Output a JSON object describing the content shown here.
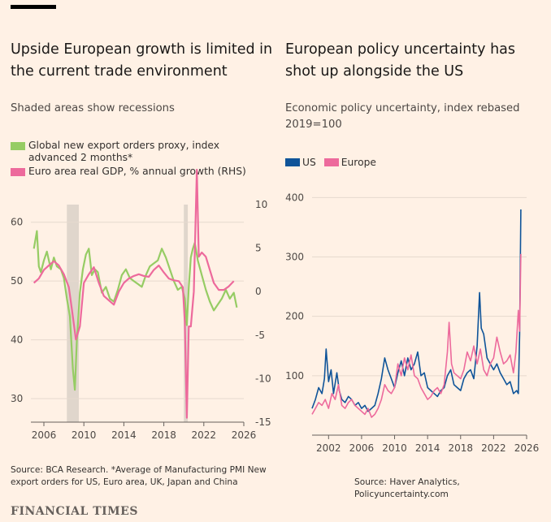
{
  "brand": "FINANCIAL TIMES",
  "left": {
    "title_line1": "Upside European growth is limited in",
    "title_line2": "the current trade environment",
    "subtitle": "Shaded areas show recessions",
    "legend_1": "Global new export orders proxy, index advanced 2 months*",
    "legend_2": "Euro area real GDP, % annual growth (RHS)",
    "source_line1": "Source: BCA Research. *Average of Manufacturing PMI New",
    "source_line2": "export orders for US, Euro area, UK, Japan and China",
    "colors": {
      "pmi": "#96cc64",
      "gdp": "#ed6a9c",
      "recession": "#e0d6cc"
    }
  },
  "right": {
    "title_line1": "European policy uncertainty has",
    "title_line2": "shot up alongside the US",
    "subtitle_line1": "Economic policy uncertainty, index rebased",
    "subtitle_line2": "2019=100",
    "legend_us": "US",
    "legend_europe": "Europe",
    "source": "Source: Haver Analytics, Policyuncertainty.com",
    "colors": {
      "us": "#0f5499",
      "europe": "#ed6a9c"
    }
  },
  "chart_data": [
    {
      "type": "line",
      "title": "Upside European growth is limited in the current trade environment",
      "subtitle": "Shaded areas show recessions",
      "xlim": [
        2004.7,
        2026
      ],
      "x_ticks": [
        "2006",
        "2010",
        "2014",
        "2018",
        "2022",
        "2026"
      ],
      "y_left": {
        "ticks": [
          "30",
          "40",
          "50",
          "60"
        ],
        "range": [
          26,
          63
        ]
      },
      "y_right": {
        "ticks": [
          "-15",
          "-10",
          "-5",
          "0",
          "5",
          "10"
        ],
        "range": [
          -15,
          10
        ]
      },
      "recessions": [
        [
          2008.3,
          2009.5
        ],
        [
          2020.0,
          2020.4
        ]
      ],
      "series": [
        {
          "name": "Global new export orders proxy, index advanced 2 months*",
          "axis": "left",
          "x": [
            2005.0,
            2005.3,
            2005.5,
            2005.7,
            2006.0,
            2006.3,
            2006.7,
            2007.0,
            2007.3,
            2007.7,
            2008.0,
            2008.3,
            2008.6,
            2008.9,
            2009.1,
            2009.3,
            2009.6,
            2009.9,
            2010.2,
            2010.5,
            2010.8,
            2011.1,
            2011.4,
            2011.8,
            2012.2,
            2012.6,
            2013.0,
            2013.4,
            2013.8,
            2014.2,
            2014.6,
            2015.0,
            2015.4,
            2015.8,
            2016.2,
            2016.6,
            2017.0,
            2017.4,
            2017.8,
            2018.2,
            2018.6,
            2019.0,
            2019.4,
            2019.8,
            2020.1,
            2020.3,
            2020.5,
            2020.7,
            2020.9,
            2021.1,
            2021.4,
            2021.8,
            2022.2,
            2022.6,
            2023.0,
            2023.4,
            2023.8,
            2024.2,
            2024.6,
            2025.0,
            2025.3
          ],
          "values": [
            55.5,
            58.5,
            52.5,
            51.5,
            53.5,
            55.0,
            52.0,
            54.0,
            52.5,
            52.0,
            50.5,
            47.0,
            44.0,
            35.0,
            31.5,
            40.0,
            48.0,
            52.0,
            54.5,
            55.5,
            51.0,
            52.0,
            51.5,
            48.0,
            49.0,
            47.0,
            46.5,
            48.5,
            51.0,
            52.0,
            50.5,
            50.0,
            49.5,
            49.0,
            51.0,
            52.5,
            53.0,
            53.5,
            55.5,
            54.0,
            52.0,
            50.0,
            48.5,
            49.0,
            47.0,
            42.5,
            49.0,
            54.0,
            55.5,
            56.5,
            53.5,
            51.0,
            48.5,
            46.5,
            45.0,
            46.0,
            47.0,
            48.5,
            47.0,
            48.0,
            45.5
          ]
        },
        {
          "name": "Euro area real GDP, % annual growth (RHS)",
          "axis": "right",
          "x": [
            2005.0,
            2005.5,
            2006.0,
            2006.5,
            2007.0,
            2007.5,
            2008.0,
            2008.5,
            2008.8,
            2009.2,
            2009.6,
            2010.0,
            2010.5,
            2011.0,
            2011.5,
            2012.0,
            2012.5,
            2013.0,
            2013.5,
            2014.0,
            2014.5,
            2015.0,
            2015.5,
            2016.0,
            2016.5,
            2017.0,
            2017.5,
            2018.0,
            2018.5,
            2019.0,
            2019.5,
            2019.9,
            2020.1,
            2020.3,
            2020.5,
            2020.7,
            2021.0,
            2021.3,
            2021.5,
            2021.8,
            2022.2,
            2022.6,
            2023.0,
            2023.5,
            2024.0,
            2024.5,
            2025.0
          ],
          "values": [
            1.0,
            1.5,
            2.5,
            3.0,
            3.5,
            3.0,
            2.0,
            0.5,
            -2.0,
            -5.5,
            -4.0,
            1.0,
            2.0,
            2.8,
            1.0,
            -0.5,
            -1.0,
            -1.5,
            0.0,
            1.0,
            1.5,
            1.8,
            2.0,
            1.8,
            1.7,
            2.5,
            3.0,
            2.2,
            1.5,
            1.3,
            1.2,
            0.5,
            -3.5,
            -14.5,
            -4.0,
            -4.0,
            0.0,
            14.0,
            4.0,
            4.5,
            4.0,
            2.5,
            1.0,
            0.2,
            0.2,
            0.6,
            1.2
          ]
        }
      ]
    },
    {
      "type": "line",
      "title": "European policy uncertainty has shot up alongside the US",
      "subtitle": "Economic policy uncertainty, index rebased 2019=100",
      "xlim": [
        2000,
        2026
      ],
      "x_ticks": [
        "2002",
        "2006",
        "2010",
        "2014",
        "2018",
        "2022",
        "2026"
      ],
      "ylim": [
        0,
        410
      ],
      "y_ticks": [
        "100",
        "200",
        "300",
        "400"
      ],
      "legend_position": "top-left",
      "series": [
        {
          "name": "US",
          "x": [
            2000.0,
            2000.4,
            2000.8,
            2001.2,
            2001.5,
            2001.7,
            2002.0,
            2002.3,
            2002.6,
            2003.0,
            2003.3,
            2003.6,
            2004.0,
            2004.4,
            2004.8,
            2005.2,
            2005.6,
            2006.0,
            2006.4,
            2006.8,
            2007.2,
            2007.6,
            2008.0,
            2008.4,
            2008.8,
            2009.2,
            2009.6,
            2010.0,
            2010.4,
            2010.8,
            2011.2,
            2011.6,
            2012.0,
            2012.4,
            2012.8,
            2013.2,
            2013.6,
            2014.0,
            2014.4,
            2014.8,
            2015.2,
            2015.6,
            2016.0,
            2016.4,
            2016.8,
            2017.2,
            2017.6,
            2018.0,
            2018.4,
            2018.8,
            2019.2,
            2019.6,
            2020.0,
            2020.3,
            2020.5,
            2020.8,
            2021.2,
            2021.6,
            2022.0,
            2022.4,
            2022.8,
            2023.2,
            2023.6,
            2024.0,
            2024.4,
            2024.8,
            2025.0,
            2025.15,
            2025.3
          ],
          "values": [
            45,
            60,
            80,
            70,
            95,
            145,
            90,
            110,
            70,
            105,
            75,
            60,
            55,
            65,
            60,
            50,
            55,
            45,
            50,
            40,
            45,
            50,
            70,
            95,
            130,
            110,
            95,
            80,
            105,
            125,
            100,
            130,
            110,
            120,
            140,
            100,
            105,
            80,
            75,
            70,
            65,
            75,
            80,
            100,
            110,
            85,
            80,
            75,
            95,
            105,
            110,
            95,
            150,
            240,
            180,
            170,
            130,
            120,
            110,
            120,
            105,
            95,
            85,
            90,
            70,
            75,
            70,
            170,
            380
          ]
        },
        {
          "name": "Europe",
          "x": [
            2000.0,
            2000.4,
            2000.8,
            2001.2,
            2001.6,
            2002.0,
            2002.4,
            2002.8,
            2003.2,
            2003.6,
            2004.0,
            2004.4,
            2004.8,
            2005.2,
            2005.6,
            2006.0,
            2006.4,
            2006.8,
            2007.2,
            2007.6,
            2008.0,
            2008.4,
            2008.8,
            2009.2,
            2009.6,
            2010.0,
            2010.4,
            2010.8,
            2011.2,
            2011.6,
            2012.0,
            2012.4,
            2012.8,
            2013.2,
            2013.6,
            2014.0,
            2014.4,
            2014.8,
            2015.2,
            2015.6,
            2016.0,
            2016.4,
            2016.6,
            2016.9,
            2017.2,
            2017.6,
            2018.0,
            2018.4,
            2018.8,
            2019.2,
            2019.6,
            2020.0,
            2020.4,
            2020.8,
            2021.2,
            2021.6,
            2022.0,
            2022.4,
            2022.8,
            2023.2,
            2023.6,
            2024.0,
            2024.4,
            2024.7,
            2025.0,
            2025.15,
            2025.3
          ],
          "values": [
            35,
            45,
            55,
            50,
            60,
            45,
            70,
            60,
            85,
            50,
            45,
            55,
            60,
            50,
            45,
            40,
            35,
            45,
            30,
            35,
            45,
            60,
            85,
            75,
            70,
            80,
            120,
            100,
            130,
            110,
            135,
            100,
            95,
            80,
            70,
            60,
            65,
            75,
            80,
            70,
            85,
            140,
            190,
            120,
            105,
            100,
            95,
            110,
            140,
            125,
            150,
            120,
            145,
            110,
            100,
            120,
            130,
            165,
            140,
            120,
            125,
            135,
            105,
            140,
            210,
            175,
            305
          ]
        }
      ]
    }
  ]
}
